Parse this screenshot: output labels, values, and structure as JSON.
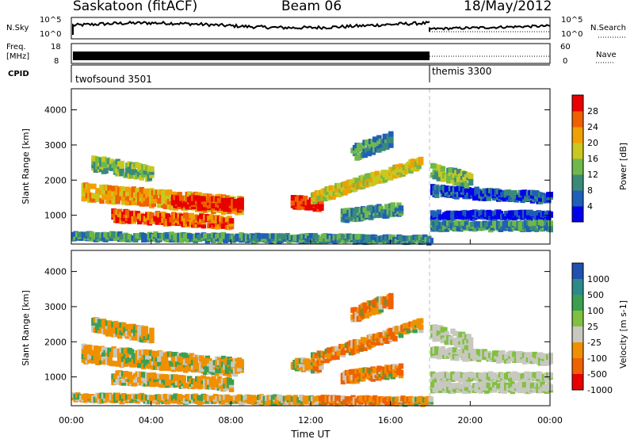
{
  "header": {
    "station": "Saskatoon (fitACF)",
    "beam": "Beam 06",
    "date": "18/May/2012"
  },
  "side_labels": {
    "nsky": "N.Sky",
    "freq_line1": "Freq.",
    "freq_line2": "[MHz]",
    "cpid": "CPID",
    "nsearch": "N.Search",
    "nave": "Nave"
  },
  "small_axes": {
    "nsky_top": "10^5",
    "nsky_bottom": "10^0",
    "nsearch_top": "10^5",
    "nsearch_bottom": "10^0",
    "freq_top": "18",
    "freq_bottom": "8",
    "nave_top": "60",
    "nave_bottom": "0"
  },
  "cpid": {
    "programs": [
      {
        "name": "twofsound 3501",
        "start_hour": 0,
        "end_hour": 18
      },
      {
        "name": "themis 3300",
        "start_hour": 18,
        "end_hour": 24
      }
    ]
  },
  "chart_data": [
    {
      "type": "heatmap",
      "title": "Power",
      "ylabel": "Slant Range [km]",
      "yticks": [
        "1000",
        "2000",
        "3000",
        "4000"
      ],
      "ylim": [
        180,
        4600
      ],
      "xlim": [
        0,
        24
      ],
      "xticks": [
        "00:00",
        "04:00",
        "08:00",
        "12:00",
        "16:00",
        "20:00",
        "00:00"
      ],
      "colorbar": {
        "label": "Power [dB]",
        "ticks": [
          "4",
          "8",
          "12",
          "16",
          "20",
          "24",
          "28"
        ],
        "colors": [
          "#0000ee",
          "#1e5fb8",
          "#3a8a7a",
          "#70b84a",
          "#c8c820",
          "#f0a000",
          "#f06000",
          "#e80000"
        ]
      }
    },
    {
      "type": "heatmap",
      "title": "Velocity",
      "ylabel": "Slant Range [km]",
      "yticks": [
        "1000",
        "2000",
        "3000",
        "4000"
      ],
      "ylim": [
        180,
        4600
      ],
      "xlim": [
        0,
        24
      ],
      "xlabel": "Time UT",
      "xticks": [
        "00:00",
        "04:00",
        "08:00",
        "12:00",
        "16:00",
        "20:00",
        "00:00"
      ],
      "colorbar": {
        "label": "Velocity [m s-1]",
        "ticks": [
          "1000",
          "500",
          "100",
          "25",
          "-25",
          "-100",
          "-500",
          "-1000"
        ],
        "colors": [
          "#2050b0",
          "#2d8a8a",
          "#3aa050",
          "#80c040",
          "#c8c8c0",
          "#f09000",
          "#f06000",
          "#e80000"
        ]
      }
    }
  ]
}
